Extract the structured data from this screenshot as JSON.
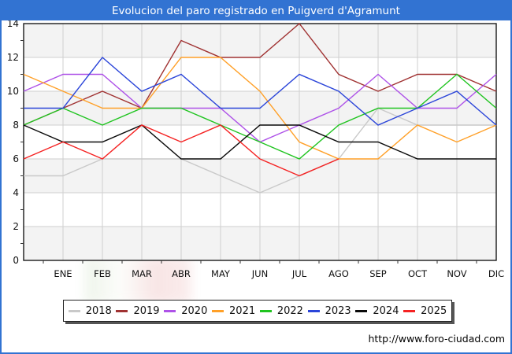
{
  "title": "Evolucion del paro registrado en Puigverd d'Agramunt",
  "footer": {
    "url": "http://www.foro-ciudad.com"
  },
  "colors": {
    "frame_blue": "#3273D2",
    "grid": "#CFCFCF",
    "band": "#F3F3F3",
    "plot_border": "#1A1A1A"
  },
  "chart_data": {
    "type": "line",
    "title": "Evolucion del paro registrado en Puigverd d'Agramunt",
    "x_labels": [
      "ENE",
      "FEB",
      "MAR",
      "ABR",
      "MAY",
      "JUN",
      "JUL",
      "AGO",
      "SEP",
      "OCT",
      "NOV",
      "DIC"
    ],
    "x_note": "each series has 13 points: an unlabeled start point on the y-axis (previous December) followed by the 12 months; 2025 ends at AGO",
    "ylim": [
      0,
      14
    ],
    "yticks": [
      0,
      2,
      4,
      6,
      8,
      10,
      12,
      14
    ],
    "grid": true,
    "legend_position": "bottom",
    "series": [
      {
        "name": "2018",
        "color": "#C9C9C9",
        "values": [
          5,
          5,
          6,
          6,
          6,
          5,
          4,
          5,
          6,
          9,
          8,
          8,
          8
        ]
      },
      {
        "name": "2019",
        "color": "#A03232",
        "values": [
          8,
          9,
          10,
          9,
          13,
          12,
          12,
          14,
          11,
          10,
          11,
          11,
          10
        ]
      },
      {
        "name": "2020",
        "color": "#AE52E8",
        "values": [
          10,
          11,
          11,
          9,
          9,
          9,
          7,
          8,
          9,
          11,
          9,
          9,
          11
        ]
      },
      {
        "name": "2021",
        "color": "#FFA028",
        "values": [
          11,
          10,
          9,
          9,
          12,
          12,
          10,
          7,
          6,
          6,
          8,
          7,
          8
        ]
      },
      {
        "name": "2022",
        "color": "#20C420",
        "values": [
          8,
          9,
          8,
          9,
          9,
          8,
          7,
          6,
          8,
          9,
          9,
          11,
          9
        ]
      },
      {
        "name": "2023",
        "color": "#2B45D9",
        "values": [
          9,
          9,
          12,
          10,
          11,
          9,
          9,
          11,
          10,
          8,
          9,
          10,
          8
        ]
      },
      {
        "name": "2024",
        "color": "#0A0A0A",
        "values": [
          8,
          7,
          7,
          8,
          6,
          6,
          8,
          8,
          7,
          7,
          6,
          6,
          6
        ]
      },
      {
        "name": "2025",
        "color": "#F52222",
        "values": [
          6,
          7,
          6,
          8,
          7,
          8,
          6,
          5,
          6
        ]
      }
    ]
  }
}
